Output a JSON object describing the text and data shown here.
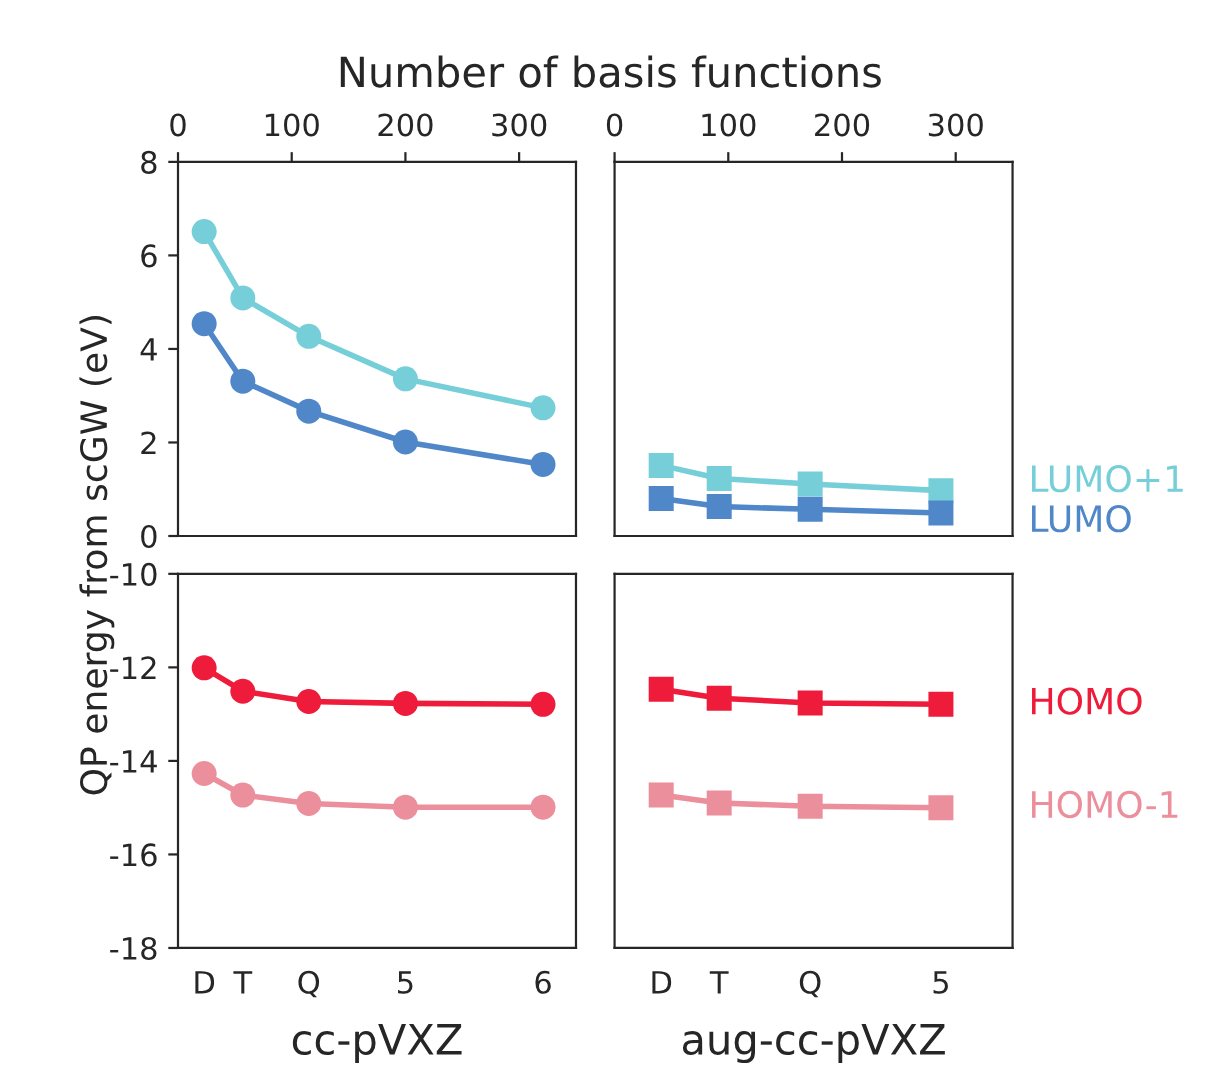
{
  "chart_data": [
    {
      "type": "line",
      "xlabel": "Number of basis functions",
      "ylabel": "QP energy from scGW (eV)",
      "xlim": [
        0,
        350
      ],
      "xticks": [
        0,
        100,
        200,
        300
      ],
      "ylim": [
        0,
        8
      ],
      "yticks": [
        0,
        2,
        4,
        6,
        8
      ],
      "marker": "circle",
      "x": [
        23,
        57,
        115,
        200,
        321
      ],
      "series": [
        {
          "color": "#76cfd8",
          "values": [
            6.51,
            5.09,
            4.27,
            3.36,
            2.74
          ]
        },
        {
          "color": "#4f87c9",
          "values": [
            4.54,
            3.31,
            2.67,
            2.01,
            1.53
          ]
        }
      ]
    },
    {
      "type": "line",
      "xlim": [
        0,
        350
      ],
      "xticks": [
        0,
        100,
        200,
        300
      ],
      "ylim": [
        0,
        8
      ],
      "tick_labels": "x",
      "marker": "square",
      "x": [
        41,
        92,
        172,
        287
      ],
      "series": [
        {
          "name": "LUMO+1",
          "color": "#76cfd8",
          "values": [
            1.51,
            1.23,
            1.11,
            0.97
          ]
        },
        {
          "name": "LUMO",
          "color": "#4f87c9",
          "values": [
            0.8,
            0.63,
            0.57,
            0.49
          ]
        }
      ]
    },
    {
      "type": "line",
      "xlabel": "cc-pVXZ",
      "xlim": [
        0,
        350
      ],
      "ylim": [
        -18,
        -10
      ],
      "yticks": [
        -18,
        -16,
        -14,
        -12,
        -10
      ],
      "tick_labels": "y",
      "marker": "circle",
      "x": [
        23,
        57,
        115,
        200,
        321
      ],
      "annotations": [
        "D",
        "T",
        "Q",
        "5",
        "6"
      ],
      "series": [
        {
          "color": "#ee1c3a",
          "values": [
            -12.01,
            -12.51,
            -12.73,
            -12.77,
            -12.79
          ]
        },
        {
          "color": "#ec8f9c",
          "values": [
            -14.27,
            -14.73,
            -14.91,
            -14.99,
            -14.99
          ]
        }
      ]
    },
    {
      "type": "line",
      "xlabel": "aug-cc-pVXZ",
      "xlim": [
        0,
        350
      ],
      "ylim": [
        -18,
        -10
      ],
      "tick_labels": false,
      "marker": "square",
      "x": [
        41,
        92,
        172,
        287
      ],
      "annotations": [
        "D",
        "T",
        "Q",
        "5"
      ],
      "series": [
        {
          "name": "HOMO",
          "color": "#ee1c3a",
          "values": [
            -12.47,
            -12.66,
            -12.76,
            -12.79
          ]
        },
        {
          "name": "HOMO-1",
          "color": "#ec8f9c",
          "values": [
            -14.73,
            -14.9,
            -14.97,
            -15.0
          ]
        }
      ]
    }
  ]
}
